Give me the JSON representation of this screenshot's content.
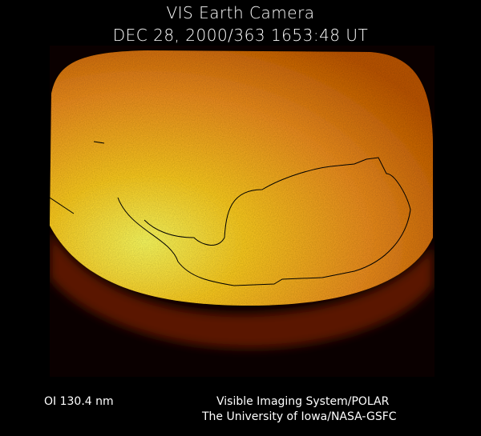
{
  "header": {
    "title": "VIS Earth Camera",
    "timestamp": "DEC 28, 2000/363 1653:48 UT"
  },
  "image": {
    "description_colors": {
      "dim": "#3a0a00",
      "mid": "#e07a10",
      "bright": "#ffee30"
    }
  },
  "footer": {
    "wavelength": "OI  130.4 nm",
    "credit_line1": "Visible Imaging System/POLAR",
    "credit_line2": "The University of Iowa/NASA-GSFC"
  }
}
